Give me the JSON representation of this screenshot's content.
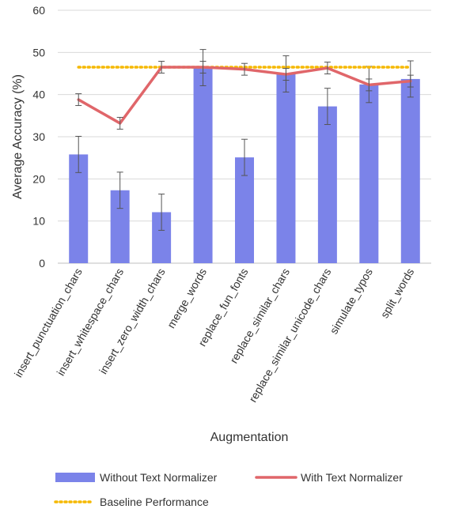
{
  "chart_data": {
    "type": "bar",
    "title": "",
    "xlabel": "Augmentation",
    "ylabel": "Average Accuracy (%)",
    "ylim": [
      0,
      60
    ],
    "yticks": [
      0,
      10,
      20,
      30,
      40,
      50,
      60
    ],
    "grid": "horizontal",
    "categories": [
      "insert_punctuation_chars",
      "insert_whitespace_chars",
      "insert_zero_width_chars",
      "merge_words",
      "replace_fun_fonts",
      "replace_similar_chars",
      "replace_similar_unicode_chars",
      "simulate_typos",
      "split_words"
    ],
    "series": [
      {
        "name": "Without Text Normalizer",
        "type": "bar",
        "color": "#7b83e9",
        "values": [
          25.8,
          17.3,
          12.1,
          46.4,
          25.1,
          44.9,
          37.2,
          42.4,
          43.7
        ],
        "error": [
          4.3,
          4.3,
          4.3,
          4.3,
          4.3,
          4.3,
          4.3,
          4.3,
          4.3
        ]
      },
      {
        "name": "With Text Normalizer",
        "type": "line",
        "color": "#e0666a",
        "values": [
          38.8,
          33.2,
          46.5,
          46.5,
          46.0,
          44.8,
          46.3,
          42.3,
          43.2
        ],
        "error": [
          1.4,
          1.4,
          1.4,
          1.4,
          1.4,
          1.4,
          1.4,
          1.4,
          1.4
        ]
      },
      {
        "name": "Baseline Performance",
        "type": "dotted-line",
        "color": "#f5b800",
        "value": 46.5
      }
    ],
    "legend": {
      "position": "bottom",
      "labels": [
        "Without Text Normalizer",
        "With Text Normalizer",
        "Baseline Performance"
      ]
    }
  }
}
